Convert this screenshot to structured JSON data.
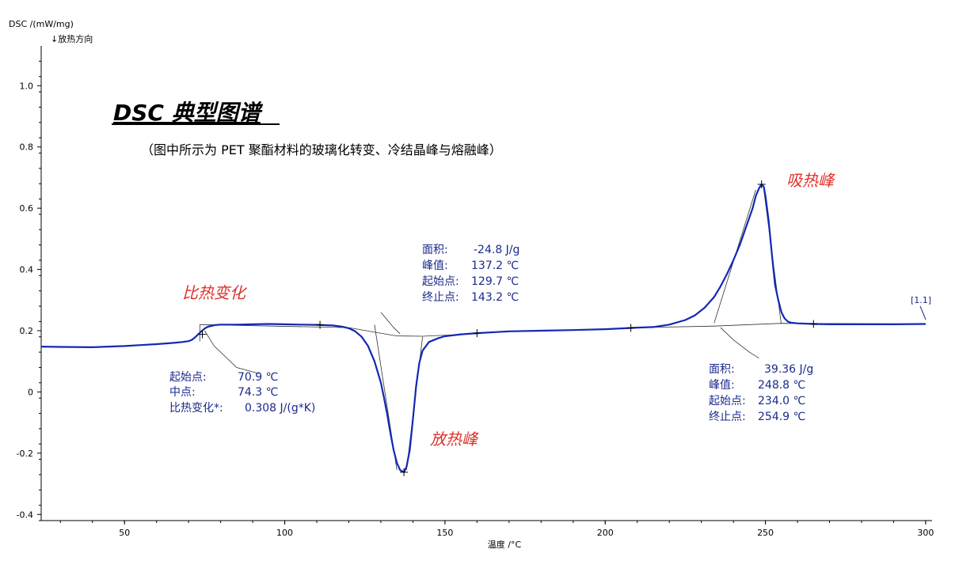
{
  "chart_data": {
    "type": "line",
    "title": "DSC 典型图谱",
    "subtitle": "（图中所示为 PET 聚酯材料的玻璃化转变、冷结晶峰与熔融峰）",
    "xlabel": "温度 /°C",
    "ylabel": "DSC /(mW/mg)",
    "ylabel_note": "↓放热方向",
    "xlim": [
      24,
      302
    ],
    "ylim": [
      -0.42,
      1.13
    ],
    "xticks": [
      50,
      100,
      150,
      200,
      250,
      300
    ],
    "yticks": [
      -0.4,
      -0.2,
      0,
      0.2,
      0.4,
      0.6,
      0.8,
      1.0
    ],
    "xtick_labels": [
      "50",
      "100",
      "150",
      "200",
      "250",
      "300"
    ],
    "ytick_labels": [
      "-0.4",
      "-0.2",
      "0",
      "0.2",
      "0.4",
      "0.6",
      "0.8",
      "1.0"
    ],
    "grid": false,
    "series": [
      {
        "color": "#1428b4",
        "x": [
          24,
          30,
          40,
          50,
          55,
          60,
          65,
          68,
          70,
          71,
          72,
          73,
          74,
          75,
          76,
          78,
          80,
          85,
          90,
          95,
          100,
          105,
          110,
          115,
          118,
          120,
          122,
          124,
          126,
          128,
          130,
          131,
          132,
          133,
          134,
          135,
          136,
          137.2,
          138,
          139,
          140,
          141,
          142,
          143,
          145,
          148,
          150,
          155,
          160,
          170,
          180,
          190,
          200,
          210,
          215,
          220,
          225,
          228,
          231,
          234,
          236,
          238,
          240,
          242,
          244,
          246,
          247,
          248,
          248.8,
          249.5,
          250,
          251,
          252,
          253,
          254,
          255,
          256,
          257,
          258,
          260,
          265,
          270,
          280,
          290,
          300
        ],
        "y": [
          0.148,
          0.147,
          0.146,
          0.15,
          0.153,
          0.156,
          0.16,
          0.163,
          0.166,
          0.17,
          0.178,
          0.188,
          0.198,
          0.207,
          0.213,
          0.218,
          0.22,
          0.22,
          0.221,
          0.222,
          0.221,
          0.22,
          0.219,
          0.217,
          0.213,
          0.208,
          0.198,
          0.18,
          0.15,
          0.1,
          0.03,
          -0.02,
          -0.075,
          -0.135,
          -0.19,
          -0.232,
          -0.255,
          -0.262,
          -0.245,
          -0.19,
          -0.09,
          0.02,
          0.095,
          0.135,
          0.163,
          0.176,
          0.182,
          0.188,
          0.192,
          0.198,
          0.2,
          0.202,
          0.205,
          0.21,
          0.212,
          0.22,
          0.235,
          0.25,
          0.275,
          0.31,
          0.345,
          0.385,
          0.43,
          0.48,
          0.54,
          0.6,
          0.64,
          0.665,
          0.678,
          0.67,
          0.64,
          0.56,
          0.45,
          0.35,
          0.3,
          0.26,
          0.24,
          0.23,
          0.226,
          0.224,
          0.222,
          0.221,
          0.221,
          0.221,
          0.222
        ]
      }
    ],
    "annotations": {
      "labels": [
        {
          "text": "比热变化",
          "x": 71,
          "y": 0.29
        },
        {
          "text": "放热峰",
          "x": 144,
          "y": -0.18
        },
        {
          "text": "吸热峰",
          "x": 256,
          "y": 0.66
        }
      ],
      "glass_transition": {
        "lines": [
          "起始点:",
          "中点:",
          "比热变化*:"
        ],
        "values": [
          "70.9 ℃",
          "74.3 ℃",
          "0.308 J/(g*K)"
        ]
      },
      "cold_crystallization": {
        "lines": [
          "面积:",
          "峰值:",
          "起始点:",
          "终止点:"
        ],
        "values": [
          "-24.8 J/g",
          "137.2 ℃",
          "129.7 ℃",
          "143.2 ℃"
        ]
      },
      "melting": {
        "lines": [
          "面积:",
          "峰值:",
          "起始点:",
          "终止点:"
        ],
        "values": [
          "39.36 J/g",
          "248.8 ℃",
          "234.0 ℃",
          "254.9 ℃"
        ]
      },
      "curve_tag": "[1.1]"
    }
  }
}
